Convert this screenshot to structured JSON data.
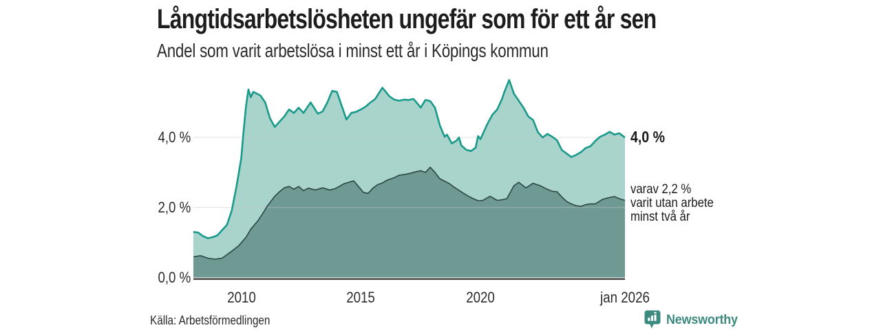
{
  "header": {
    "title": "Långtidsarbetslösheten ungefär som för ett år sen",
    "subtitle": "Andel som varit arbetslösa i minst ett år i Köpings kommun"
  },
  "footer": {
    "source": "Källa: Arbetsförmedlingen",
    "brand": "Newsworthy"
  },
  "colors": {
    "accent_teal": "#18998A",
    "light_fill": "#A9D4CC",
    "dark_fill": "#6F9A93",
    "dark_line": "#2B4642",
    "grid": "#C9C9C9",
    "axis": "#474747",
    "brand_teal": "#3B897F",
    "text": "#1D1D1D"
  },
  "chart_data": {
    "type": "area",
    "title": "Långtidsarbetslösheten ungefär som för ett år sen",
    "subtitle": "Andel som varit arbetslösa i minst ett år i Köpings kommun",
    "unit": "%",
    "grid": "horizontal-only",
    "legend_position": "right-of-line-end",
    "x_axis": {
      "min": 2008.0,
      "max": 2026.04,
      "ticks": [
        {
          "label": "2010",
          "x": 2010
        },
        {
          "label": "2015",
          "x": 2015
        },
        {
          "label": "2020",
          "x": 2020
        },
        {
          "label": "jan 2026",
          "x": 2026.04
        }
      ]
    },
    "y_axis": {
      "min": 0,
      "max": 5.9,
      "ticks": [
        {
          "label": "0,0 %",
          "value": 0
        },
        {
          "label": "2,0 %",
          "value": 2
        },
        {
          "label": "4,0 %",
          "value": 4
        }
      ]
    },
    "series": [
      {
        "id": "total-minst-ett-ar",
        "name": "Andel som varit arbetslösa i minst ett år",
        "color": "#18998A",
        "fill": "#A9D4CC",
        "end_value": 4.0,
        "end_label": "4,0 %",
        "end_label_style": "big",
        "x": [
          2008.0,
          2008.2,
          2008.4,
          2008.6,
          2008.8,
          2009.0,
          2009.2,
          2009.4,
          2009.6,
          2009.8,
          2010.0,
          2010.1,
          2010.2,
          2010.3,
          2010.4,
          2010.5,
          2010.6,
          2010.8,
          2011.0,
          2011.2,
          2011.4,
          2011.6,
          2011.8,
          2012.0,
          2012.2,
          2012.4,
          2012.6,
          2012.9,
          2013.2,
          2013.4,
          2013.6,
          2013.8,
          2014.0,
          2014.2,
          2014.4,
          2014.6,
          2014.8,
          2015.0,
          2015.2,
          2015.4,
          2015.6,
          2015.9,
          2016.2,
          2016.4,
          2016.6,
          2016.8,
          2017.0,
          2017.2,
          2017.4,
          2017.5,
          2017.7,
          2017.9,
          2018.1,
          2018.3,
          2018.5,
          2018.6,
          2018.8,
          2019.0,
          2019.1,
          2019.2,
          2019.4,
          2019.6,
          2019.8,
          2019.9,
          2020.0,
          2020.1,
          2020.3,
          2020.5,
          2020.7,
          2020.9,
          2021.0,
          2021.2,
          2021.4,
          2021.6,
          2021.8,
          2022.0,
          2022.2,
          2022.4,
          2022.6,
          2022.8,
          2023.0,
          2023.2,
          2023.4,
          2023.6,
          2023.8,
          2024.0,
          2024.2,
          2024.4,
          2024.6,
          2024.8,
          2025.0,
          2025.2,
          2025.4,
          2025.6,
          2025.8,
          2026.04
        ],
        "values": [
          1.3,
          1.28,
          1.18,
          1.12,
          1.15,
          1.2,
          1.35,
          1.5,
          1.9,
          2.6,
          3.4,
          4.2,
          4.9,
          5.37,
          5.15,
          5.3,
          5.27,
          5.2,
          5.0,
          4.55,
          4.3,
          4.45,
          4.6,
          4.8,
          4.7,
          4.85,
          4.7,
          5.0,
          4.68,
          4.74,
          5.0,
          5.33,
          5.3,
          4.9,
          4.51,
          4.7,
          4.73,
          4.8,
          4.88,
          5.0,
          5.1,
          5.42,
          5.17,
          5.08,
          5.05,
          5.08,
          5.07,
          5.1,
          4.94,
          4.85,
          5.07,
          5.04,
          4.85,
          4.35,
          4.02,
          4.08,
          3.83,
          3.91,
          4.0,
          3.77,
          3.65,
          3.61,
          3.71,
          4.04,
          3.95,
          4.1,
          4.4,
          4.65,
          4.8,
          5.1,
          5.3,
          5.64,
          5.25,
          5.05,
          4.85,
          4.6,
          4.5,
          4.15,
          4.0,
          4.1,
          4.02,
          3.92,
          3.64,
          3.54,
          3.44,
          3.5,
          3.58,
          3.7,
          3.75,
          3.9,
          4.02,
          4.08,
          4.16,
          4.08,
          4.12,
          4.0
        ]
      },
      {
        "id": "minst-tva-ar",
        "name": "varav varit utan arbete minst två år",
        "color": "#2B4642",
        "fill": "#6F9A93",
        "end_value": 2.2,
        "end_label": "varav 2,2 %\nvarit utan arbete\nminst två år",
        "end_label_style": "normal",
        "x": [
          2008.0,
          2008.3,
          2008.6,
          2008.9,
          2009.2,
          2009.4,
          2009.7,
          2009.9,
          2010.2,
          2010.4,
          2010.7,
          2010.9,
          2011.1,
          2011.4,
          2011.6,
          2011.8,
          2012.0,
          2012.2,
          2012.4,
          2012.6,
          2012.8,
          2013.1,
          2013.4,
          2013.7,
          2013.9,
          2014.1,
          2014.3,
          2014.5,
          2014.7,
          2014.9,
          2015.1,
          2015.3,
          2015.5,
          2015.7,
          2015.9,
          2016.1,
          2016.4,
          2016.6,
          2016.9,
          2017.1,
          2017.3,
          2017.5,
          2017.7,
          2017.9,
          2018.1,
          2018.3,
          2018.5,
          2018.7,
          2018.9,
          2019.1,
          2019.3,
          2019.5,
          2019.7,
          2019.9,
          2020.1,
          2020.4,
          2020.7,
          2020.9,
          2021.1,
          2021.4,
          2021.6,
          2021.9,
          2022.2,
          2022.5,
          2022.7,
          2023.0,
          2023.2,
          2023.4,
          2023.6,
          2023.8,
          2024.0,
          2024.2,
          2024.4,
          2024.6,
          2024.8,
          2025.1,
          2025.3,
          2025.6,
          2025.8,
          2026.04
        ],
        "values": [
          0.59,
          0.62,
          0.55,
          0.52,
          0.55,
          0.65,
          0.8,
          0.91,
          1.15,
          1.38,
          1.62,
          1.83,
          2.05,
          2.32,
          2.45,
          2.56,
          2.6,
          2.52,
          2.6,
          2.48,
          2.55,
          2.5,
          2.56,
          2.5,
          2.53,
          2.6,
          2.68,
          2.72,
          2.76,
          2.6,
          2.43,
          2.4,
          2.55,
          2.65,
          2.7,
          2.78,
          2.85,
          2.92,
          2.95,
          2.98,
          3.02,
          3.05,
          3.0,
          3.15,
          3.0,
          2.82,
          2.75,
          2.68,
          2.58,
          2.49,
          2.4,
          2.32,
          2.25,
          2.19,
          2.2,
          2.32,
          2.2,
          2.22,
          2.25,
          2.62,
          2.72,
          2.56,
          2.69,
          2.62,
          2.55,
          2.46,
          2.45,
          2.3,
          2.17,
          2.1,
          2.05,
          2.03,
          2.08,
          2.1,
          2.1,
          2.23,
          2.27,
          2.31,
          2.25,
          2.2
        ]
      }
    ]
  }
}
